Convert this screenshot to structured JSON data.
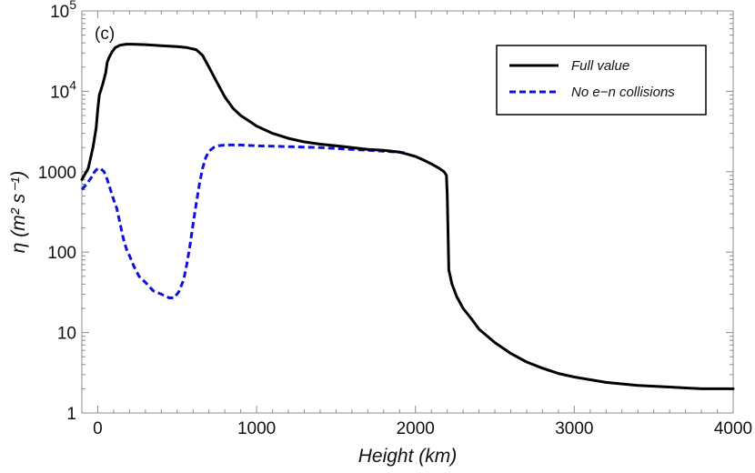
{
  "chart_data": {
    "type": "line",
    "panel_label": "(c)",
    "xlabel": "Height (km)",
    "ylabel": "η (m² s⁻¹)",
    "xlim": [
      -100,
      4000
    ],
    "ylim": [
      1,
      100000
    ],
    "yscale": "log",
    "x_ticks": [
      0,
      1000,
      2000,
      3000,
      4000
    ],
    "x_tick_labels": [
      "0",
      "1000",
      "2000",
      "3000",
      "4000"
    ],
    "y_ticks": [
      1,
      10,
      100,
      1000,
      10000,
      100000
    ],
    "y_tick_labels": [
      {
        "base": "1",
        "exp": ""
      },
      {
        "base": "10",
        "exp": ""
      },
      {
        "base": "100",
        "exp": ""
      },
      {
        "base": "1000",
        "exp": ""
      },
      {
        "base": "10",
        "exp": "4"
      },
      {
        "base": "10",
        "exp": "5"
      }
    ],
    "grid": false,
    "legend_position": "top-right",
    "series": [
      {
        "name": "Full value",
        "color": "#000000",
        "dash": "solid",
        "x": [
          -100,
          -60,
          -30,
          -10,
          0,
          10,
          30,
          50,
          60,
          70,
          90,
          110,
          140,
          180,
          220,
          300,
          400,
          500,
          560,
          620,
          660,
          700,
          750,
          800,
          850,
          900,
          950,
          1000,
          1100,
          1200,
          1300,
          1400,
          1500,
          1600,
          1700,
          1800,
          1900,
          1950,
          2000,
          2050,
          2100,
          2150,
          2180,
          2195,
          2200,
          2210,
          2230,
          2260,
          2300,
          2350,
          2400,
          2500,
          2600,
          2700,
          2800,
          2900,
          3000,
          3200,
          3400,
          3600,
          3800,
          4000
        ],
        "y": [
          800,
          1100,
          2000,
          3500,
          6000,
          9000,
          12000,
          17000,
          23000,
          26000,
          31000,
          35000,
          37500,
          38500,
          38500,
          38000,
          37000,
          36000,
          35000,
          33000,
          28000,
          20000,
          13000,
          8500,
          6200,
          5000,
          4300,
          3700,
          3000,
          2600,
          2350,
          2200,
          2100,
          2000,
          1900,
          1850,
          1750,
          1650,
          1550,
          1400,
          1250,
          1100,
          1000,
          900,
          500,
          60,
          40,
          28,
          20,
          15,
          11,
          7.5,
          5.5,
          4.3,
          3.6,
          3.1,
          2.8,
          2.4,
          2.2,
          2.1,
          2.0,
          2.0
        ]
      },
      {
        "name": "No e−n collisions",
        "color": "#1010dd",
        "dash": "dashed",
        "x": [
          -100,
          -70,
          -40,
          -20,
          0,
          20,
          40,
          60,
          80,
          100,
          120,
          140,
          160,
          180,
          200,
          230,
          260,
          300,
          350,
          400,
          450,
          480,
          510,
          540,
          560,
          580,
          600,
          620,
          640,
          660,
          680,
          700,
          730,
          760,
          800,
          900,
          1000,
          1200,
          1400,
          1600,
          1800,
          1900,
          1950
        ],
        "y": [
          600,
          700,
          850,
          1000,
          1100,
          1080,
          1000,
          800,
          600,
          450,
          350,
          230,
          150,
          110,
          90,
          65,
          50,
          42,
          33,
          30,
          27,
          27,
          32,
          45,
          70,
          120,
          220,
          400,
          700,
          1100,
          1500,
          1800,
          2000,
          2100,
          2150,
          2150,
          2100,
          2050,
          2000,
          1900,
          1800,
          1750,
          1700
        ]
      }
    ]
  }
}
